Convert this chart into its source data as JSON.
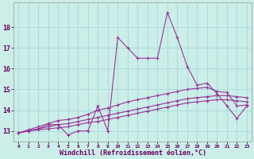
{
  "x": [
    0,
    1,
    2,
    3,
    4,
    5,
    6,
    7,
    8,
    9,
    10,
    11,
    12,
    13,
    14,
    15,
    16,
    17,
    18,
    19,
    20,
    21,
    22,
    23
  ],
  "line_jagged": [
    12.9,
    13.0,
    13.1,
    13.3,
    13.3,
    12.8,
    13.0,
    13.0,
    14.2,
    13.0,
    17.5,
    17.0,
    16.5,
    16.5,
    16.5,
    18.7,
    17.5,
    16.1,
    15.2,
    15.3,
    14.8,
    14.2,
    13.6,
    14.2
  ],
  "line_top": [
    12.9,
    13.05,
    13.2,
    13.35,
    13.5,
    13.55,
    13.65,
    13.8,
    14.0,
    14.1,
    14.25,
    14.4,
    14.5,
    14.6,
    14.7,
    14.8,
    14.9,
    15.0,
    15.05,
    15.1,
    14.9,
    14.85,
    14.2,
    14.25
  ],
  "line_mid": [
    12.9,
    13.0,
    13.1,
    13.2,
    13.3,
    13.35,
    13.45,
    13.55,
    13.65,
    13.75,
    13.85,
    13.95,
    14.05,
    14.15,
    14.25,
    14.35,
    14.45,
    14.55,
    14.6,
    14.65,
    14.7,
    14.7,
    14.65,
    14.6
  ],
  "line_bot": [
    12.9,
    13.0,
    13.05,
    13.1,
    13.15,
    13.2,
    13.3,
    13.4,
    13.45,
    13.55,
    13.65,
    13.75,
    13.85,
    13.95,
    14.05,
    14.15,
    14.25,
    14.35,
    14.4,
    14.45,
    14.5,
    14.5,
    14.45,
    14.4
  ],
  "color": "#993399",
  "bg_color": "#cceee8",
  "grid_color": "#aadddd",
  "xlabel": "Windchill (Refroidissement éolien,°C)",
  "ylabel_ticks": [
    13,
    14,
    15,
    16,
    17,
    18
  ],
  "ylim": [
    12.5,
    19.2
  ],
  "xlim": [
    -0.5,
    23.5
  ]
}
